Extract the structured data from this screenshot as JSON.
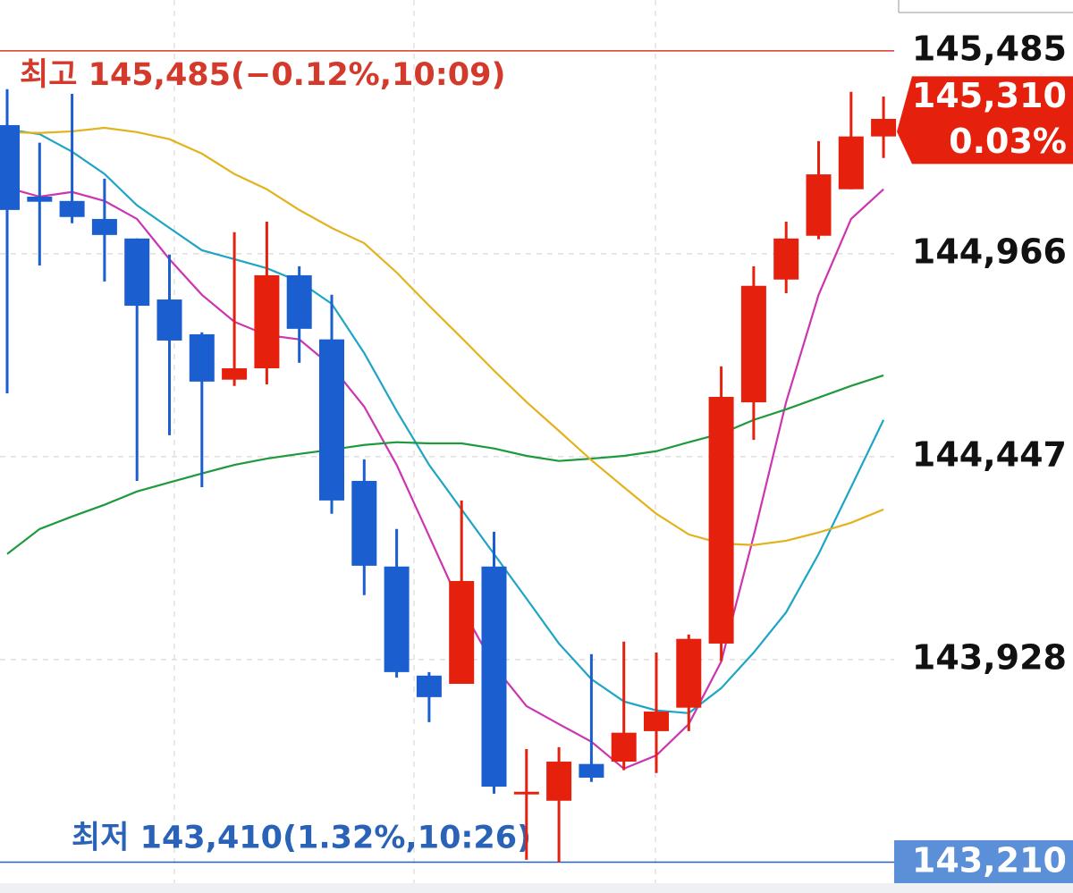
{
  "chart_data": {
    "type": "candlestick",
    "open": [
      145295,
      145112,
      145101,
      145055,
      145005,
      144849,
      144760,
      144644,
      144673,
      144911,
      144747,
      144385,
      144166,
      143887,
      143866,
      144166,
      143585,
      143567,
      143661,
      143667,
      143745,
      143805,
      143969,
      144586,
      144900,
      145012,
      145131,
      145266
    ],
    "high": [
      145387,
      145250,
      145375,
      145158,
      145005,
      144964,
      144765,
      145021,
      145048,
      144934,
      144861,
      144440,
      144262,
      143896,
      144335,
      144255,
      143699,
      143704,
      143942,
      143974,
      143946,
      143992,
      144678,
      144934,
      145048,
      145254,
      145380,
      145368
    ],
    "low": [
      144609,
      144936,
      145044,
      144895,
      144385,
      144502,
      144369,
      144628,
      144632,
      144687,
      144301,
      144093,
      143882,
      143768,
      143866,
      143585,
      143416,
      143410,
      143615,
      143645,
      143638,
      143745,
      143924,
      144490,
      144865,
      145003,
      145131,
      145211
    ],
    "close": [
      145078,
      145099,
      145060,
      145014,
      144833,
      144744,
      144639,
      144673,
      144911,
      144774,
      144335,
      144168,
      143896,
      143832,
      144129,
      143603,
      143590,
      143667,
      143626,
      143741,
      143795,
      143981,
      144600,
      144884,
      145005,
      145169,
      145266,
      145311
    ],
    "up_color": "#e5200c",
    "down_color": "#1a5ecf",
    "ma_lines": [
      {
        "color": "#cc35b0",
        "values": [
          145135,
          145112,
          145124,
          145101,
          145055,
          144952,
          144861,
          144792,
          144758,
          144747,
          144678,
          144575,
          144426,
          144244,
          144061,
          143912,
          143809,
          143763,
          143718,
          143649,
          143683,
          143763,
          143923,
          144244,
          144587,
          144861,
          145055,
          145131
        ]
      },
      {
        "color": "#1ea5c6",
        "values": [
          145284,
          145272,
          145227,
          145170,
          145090,
          145032,
          144975,
          144952,
          144929,
          144895,
          144838,
          144712,
          144564,
          144426,
          144312,
          144198,
          144084,
          143969,
          143878,
          143821,
          143798,
          143791,
          143855,
          143946,
          144049,
          144198,
          144369,
          144541
        ]
      },
      {
        "color": "#1e9a3c",
        "values": [
          144198,
          144262,
          144294,
          144324,
          144358,
          144381,
          144404,
          144426,
          144442,
          144454,
          144465,
          144477,
          144484,
          144481,
          144481,
          144468,
          144449,
          144436,
          144442,
          144449,
          144461,
          144484,
          144506,
          144541,
          144568,
          144598,
          144628,
          144655
        ]
      },
      {
        "color": "#e3b21f",
        "values": [
          145277,
          145275,
          145279,
          145288,
          145277,
          145259,
          145222,
          145170,
          145131,
          145078,
          145032,
          144993,
          144918,
          144833,
          144751,
          144667,
          144587,
          144513,
          144438,
          144369,
          144301,
          144248,
          144225,
          144221,
          144232,
          144253,
          144278,
          144312
        ]
      }
    ],
    "ylim": [
      143331,
      145615
    ],
    "yticks": [
      {
        "value": 144966,
        "label": "144,966"
      },
      {
        "value": 144447,
        "label": "144,447"
      },
      {
        "value": 143928,
        "label": "143,928"
      }
    ],
    "grid": true,
    "high_line": {
      "value": 145485,
      "label": "145,485",
      "text": "최고 145,485(−0.12%,10:09)",
      "color": "#d33a2c"
    },
    "low_line": {
      "value": 143410,
      "text": "최저 143,410(1.32%,10:26)",
      "color": "#2a62b8"
    },
    "current": {
      "value": 145310,
      "label": "145,310",
      "change": "0.03%",
      "color": "#e5200c"
    },
    "bottom_box": {
      "label": "143,210",
      "color": "#5b8fd8"
    }
  }
}
